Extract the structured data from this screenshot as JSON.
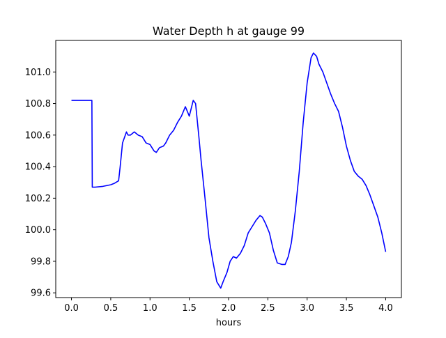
{
  "chart_data": {
    "type": "line",
    "title": "Water Depth h at gauge 99",
    "xlabel": "hours",
    "ylabel": "",
    "xlim": [
      -0.2,
      4.2
    ],
    "ylim": [
      99.57,
      101.2
    ],
    "xticks": [
      0.0,
      0.5,
      1.0,
      1.5,
      2.0,
      2.5,
      3.0,
      3.5,
      4.0
    ],
    "xtick_labels": [
      "0.0",
      "0.5",
      "1.0",
      "1.5",
      "2.0",
      "2.5",
      "3.0",
      "3.5",
      "4.0"
    ],
    "yticks": [
      99.6,
      99.8,
      100.0,
      100.2,
      100.4,
      100.6,
      100.8,
      101.0
    ],
    "ytick_labels": [
      "99.6",
      "99.8",
      "100.0",
      "100.2",
      "100.4",
      "100.6",
      "100.8",
      "101.0"
    ],
    "grid": false,
    "series": [
      {
        "color": "#0000ff",
        "x": [
          0.0,
          0.1,
          0.2,
          0.26,
          0.265,
          0.3,
          0.4,
          0.5,
          0.55,
          0.6,
          0.62,
          0.65,
          0.7,
          0.72,
          0.75,
          0.8,
          0.85,
          0.9,
          0.95,
          1.0,
          1.05,
          1.08,
          1.12,
          1.17,
          1.2,
          1.25,
          1.3,
          1.35,
          1.4,
          1.45,
          1.5,
          1.55,
          1.58,
          1.62,
          1.65,
          1.7,
          1.75,
          1.8,
          1.85,
          1.9,
          1.93,
          1.98,
          2.02,
          2.06,
          2.1,
          2.15,
          2.2,
          2.25,
          2.3,
          2.35,
          2.4,
          2.43,
          2.47,
          2.52,
          2.57,
          2.62,
          2.68,
          2.72,
          2.76,
          2.8,
          2.85,
          2.9,
          2.95,
          3.0,
          3.05,
          3.08,
          3.12,
          3.15,
          3.2,
          3.25,
          3.3,
          3.35,
          3.4,
          3.45,
          3.5,
          3.55,
          3.6,
          3.65,
          3.7,
          3.75,
          3.8,
          3.85,
          3.9,
          3.95,
          4.0
        ],
        "y": [
          100.82,
          100.82,
          100.82,
          100.82,
          100.27,
          100.27,
          100.275,
          100.285,
          100.295,
          100.31,
          100.4,
          100.55,
          100.62,
          100.6,
          100.6,
          100.62,
          100.6,
          100.59,
          100.55,
          100.54,
          100.5,
          100.49,
          100.52,
          100.53,
          100.55,
          100.6,
          100.63,
          100.68,
          100.72,
          100.78,
          100.72,
          100.82,
          100.8,
          100.6,
          100.44,
          100.2,
          99.95,
          99.8,
          99.67,
          99.63,
          99.67,
          99.73,
          99.8,
          99.83,
          99.82,
          99.85,
          99.9,
          99.98,
          100.02,
          100.06,
          100.09,
          100.08,
          100.04,
          99.98,
          99.87,
          99.79,
          99.78,
          99.78,
          99.83,
          99.92,
          100.12,
          100.37,
          100.68,
          100.93,
          101.09,
          101.12,
          101.1,
          101.05,
          101.0,
          100.93,
          100.86,
          100.8,
          100.75,
          100.65,
          100.53,
          100.44,
          100.37,
          100.34,
          100.32,
          100.28,
          100.22,
          100.15,
          100.08,
          99.98,
          99.86
        ]
      }
    ]
  }
}
